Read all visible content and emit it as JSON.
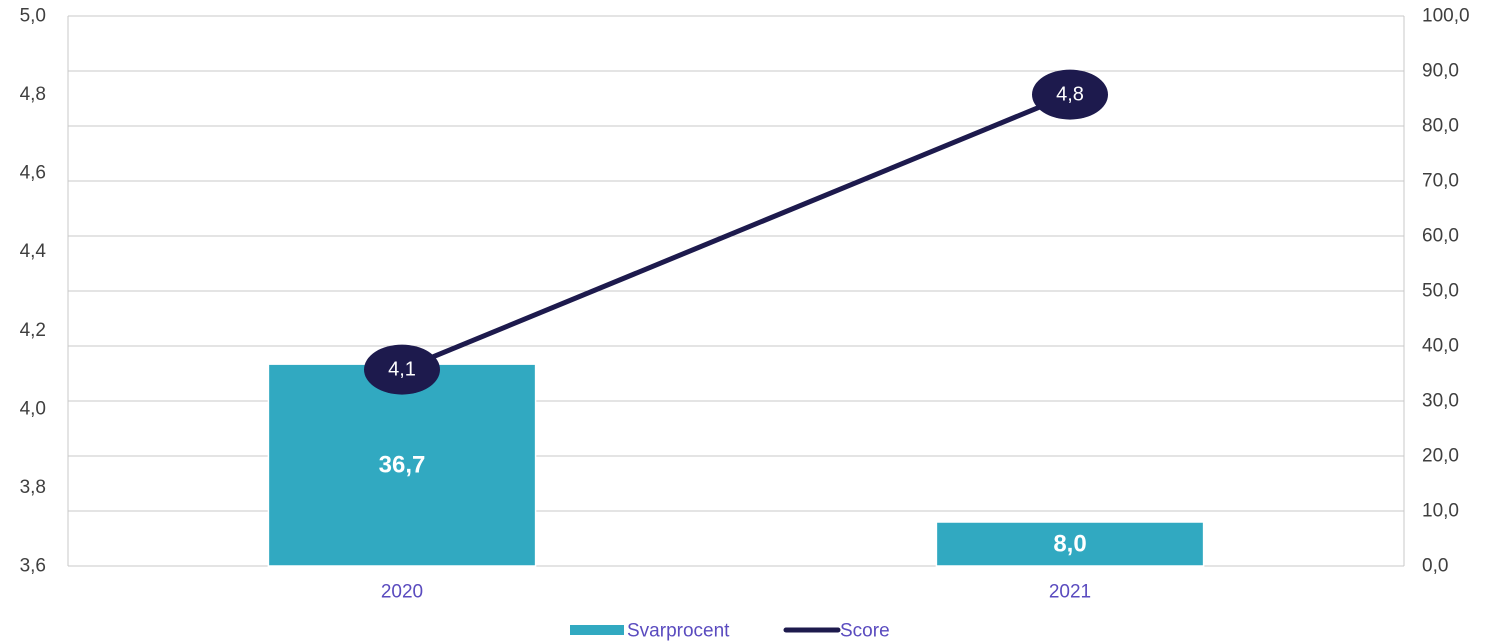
{
  "chart_data": {
    "type": "bar+line",
    "categories": [
      "2020",
      "2021"
    ],
    "series": [
      {
        "name": "Svarprocent",
        "type": "bar",
        "axis": "right",
        "values": [
          36.7,
          8.0
        ],
        "labels": [
          "36,7",
          "8,0"
        ],
        "color": "#31a9c1"
      },
      {
        "name": "Score",
        "type": "line",
        "axis": "left",
        "values": [
          4.1,
          4.8
        ],
        "labels": [
          "4,1",
          "4,8"
        ],
        "color": "#1d1a4d"
      }
    ],
    "y_left": {
      "range": [
        3.6,
        5.0
      ],
      "ticks": [
        3.6,
        3.8,
        4.0,
        4.2,
        4.4,
        4.6,
        4.8,
        5.0
      ],
      "tick_labels": [
        "3,6",
        "3,8",
        "4,0",
        "4,2",
        "4,4",
        "4,6",
        "4,8",
        "5,0"
      ]
    },
    "y_right": {
      "range": [
        0,
        100
      ],
      "ticks": [
        0,
        10,
        20,
        30,
        40,
        50,
        60,
        70,
        80,
        90,
        100
      ],
      "tick_labels": [
        "0,0",
        "10,0",
        "20,0",
        "30,0",
        "40,0",
        "50,0",
        "60,0",
        "70,0",
        "80,0",
        "90,0",
        "100,0"
      ]
    },
    "grid": true,
    "legend": {
      "position": "bottom",
      "entries": [
        "Svarprocent",
        "Score"
      ]
    }
  }
}
